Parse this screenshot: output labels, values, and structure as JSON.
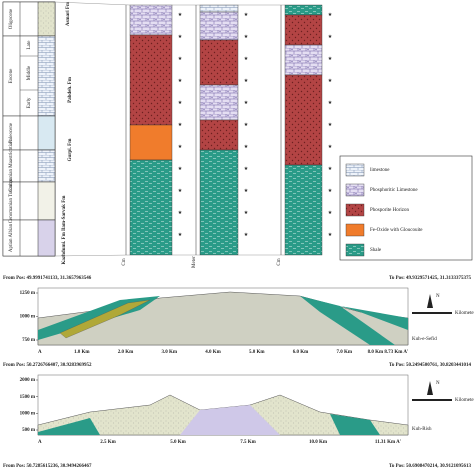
{
  "stratigraphy": {
    "epochs": [
      "Oligocene",
      "Eocene",
      "Late",
      "Middle",
      "Early",
      "Paleocene",
      "Campanian Maastrichtian",
      "Cenomanian Turonian",
      "Aptian Albian"
    ],
    "formations": [
      "Asmari Fm",
      "Pabdeh. Fm",
      "Gurpi. Fm",
      "Kazhdumi. Fm Ilam-Sarvak Fm"
    ]
  },
  "sections": {
    "units": [
      "Cm",
      "Meter",
      "Cm"
    ]
  },
  "legend": [
    "limestone",
    "Phosphoritic Limestone",
    "Phosporite Horizon",
    "Fe-Oxide with Gloucouite",
    "Shale"
  ],
  "profiles": [
    {
      "from": "From Pos: 49.9991741133, 31.3657963546",
      "to": "To Pos: 49.9329571425, 31.3133375375",
      "y_labels": [
        "1250 m",
        "1000 m",
        "750 m"
      ],
      "x_labels": [
        "A",
        "1.0 Km",
        "2.0 Km",
        "3.0 Km",
        "4.0 Km",
        "5.0 Km",
        "6.0 Km",
        "7.0 Km",
        "8.0 Km 8.73 Km A'"
      ],
      "name": "Kuh-e-Sefid",
      "scale_label": "Kilometer"
    },
    {
      "from": "From Pos: 50.2726766407, 30.9283969952",
      "to": "To Pos: 50.2494500761, 30.8203441014",
      "y_labels": [
        "2000 m",
        "1500 m",
        "1000 m",
        "500 m"
      ],
      "x_labels": [
        "A",
        "2.5 Km",
        "5.0 Km",
        "7.5 Km",
        "10.0 Km",
        "11.31 Km A'"
      ],
      "name": "Kuh-Rish",
      "scale_label": "Kilometer"
    },
    {
      "from": "From Pos: 50.7285615236, 30.9494266467",
      "to": "To Pos: 50.6908470214, 30.9121095613"
    }
  ]
}
